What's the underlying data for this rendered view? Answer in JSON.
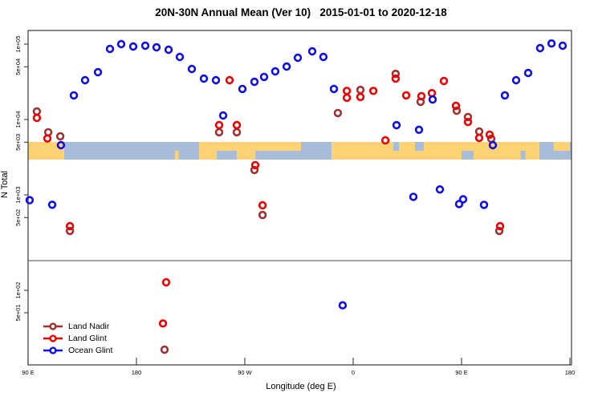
{
  "title": "20N-30N Annual Mean (Ver 10)   2015-01-01 to 2020-12-18",
  "xlabel": "Longitude (deg E)",
  "ylabel": "N Total",
  "colors": {
    "land_nadir": "#A03030",
    "land_glint": "#EE0000",
    "ocean_glint": "#0D0DE8",
    "band_ocean": "#A8BDDB",
    "band_land": "#FFD373",
    "separator": "#888888",
    "axis": "#3a3a3a",
    "tick_text": "#000000"
  },
  "legend": {
    "items": [
      {
        "label": "Land Nadir",
        "color": "land_nadir"
      },
      {
        "label": "Land Glint",
        "color": "land_glint"
      },
      {
        "label": "Ocean Glint",
        "color": "ocean_glint"
      }
    ]
  },
  "axes": {
    "x_ticks": [
      {
        "label": "90 E",
        "lon": 90
      },
      {
        "label": "180",
        "lon": 180
      },
      {
        "label": "90 W",
        "lon": 270
      },
      {
        "label": "0",
        "lon": 360
      },
      {
        "label": "90 E",
        "lon": 450
      },
      {
        "label": "180",
        "lon": 540
      }
    ],
    "y_ticks_upper": [
      {
        "label": "1e+05",
        "value": 100000
      },
      {
        "label": "5e+04",
        "value": 50000
      },
      {
        "label": "1e+04",
        "value": 10000
      },
      {
        "label": "5e+03",
        "value": 5000
      },
      {
        "label": "1e+03",
        "value": 1000
      },
      {
        "label": "5e+02",
        "value": 500
      }
    ],
    "y_ticks_lower": [
      {
        "label": "1e+02",
        "value": 100
      },
      {
        "label": "5e+01",
        "value": 50
      }
    ]
  },
  "map_band": {
    "land_segments": [
      {
        "from": 90,
        "to": 120,
        "part": "full"
      },
      {
        "from": 212,
        "to": 215,
        "part": "bottom"
      },
      {
        "from": 232,
        "to": 246.7,
        "part": "full"
      },
      {
        "from": 246.7,
        "to": 263.3,
        "part": "top"
      },
      {
        "from": 263.3,
        "to": 278.7,
        "part": "full"
      },
      {
        "from": 278.7,
        "to": 316.7,
        "part": "top"
      },
      {
        "from": 342,
        "to": 514.7,
        "part": "full"
      },
      {
        "from": 526.7,
        "to": 540,
        "part": "top"
      }
    ],
    "ocean_patches": [
      {
        "from": 393.3,
        "to": 398,
        "part": "top"
      },
      {
        "from": 411.3,
        "to": 418.7,
        "part": "top"
      },
      {
        "from": 450,
        "to": 460,
        "part": "bottom"
      },
      {
        "from": 499,
        "to": 503,
        "part": "bottom"
      }
    ]
  },
  "chart_data": {
    "type": "scatter",
    "title": "20N-30N Annual Mean (Ver 10)   2015-01-01 to 2020-12-18",
    "xlabel": "Longitude (deg E)",
    "ylabel": "N Total",
    "x_range_deg_east": [
      90,
      540
    ],
    "y_scale": "log10-split",
    "y_range_upper": [
      134,
      150000
    ],
    "y_range_lower": [
      8,
      250
    ],
    "grid": false,
    "legend_position": "bottom-left",
    "series": [
      {
        "name": "Land Nadir",
        "color": "land_nadir",
        "points": [
          [
            97.3,
            12800
          ],
          [
            106.7,
            6780
          ],
          [
            116.7,
            6000
          ],
          [
            124.7,
            333
          ],
          [
            248.7,
            6780
          ],
          [
            263.3,
            6780
          ],
          [
            278,
            2140
          ],
          [
            284.7,
            541
          ],
          [
            347.3,
            12200
          ],
          [
            366,
            24700
          ],
          [
            395.3,
            40300
          ],
          [
            416,
            17200
          ],
          [
            446,
            13100
          ],
          [
            455.3,
            10800
          ],
          [
            464.7,
            6930
          ],
          [
            474.7,
            5560
          ],
          [
            481.3,
            333
          ],
          [
            203.3,
            16
          ]
        ]
      },
      {
        "name": "Land Glint",
        "color": "land_glint",
        "points": [
          [
            97.3,
            10500
          ],
          [
            106,
            5600
          ],
          [
            124.7,
            385
          ],
          [
            248.7,
            8430
          ],
          [
            257.3,
            33200
          ],
          [
            263.3,
            8430
          ],
          [
            278.7,
            2480
          ],
          [
            284.7,
            728
          ],
          [
            354.7,
            24000
          ],
          [
            354.7,
            19400
          ],
          [
            366,
            19900
          ],
          [
            376.7,
            24000
          ],
          [
            386.7,
            5290
          ],
          [
            395.3,
            34900
          ],
          [
            404,
            20900
          ],
          [
            416.7,
            20400
          ],
          [
            425.3,
            22400
          ],
          [
            435.3,
            32400
          ],
          [
            445.3,
            15200
          ],
          [
            455.3,
            9280
          ],
          [
            464.7,
            5700
          ],
          [
            473.3,
            6290
          ],
          [
            482,
            385
          ],
          [
            204.7,
            128
          ],
          [
            202,
            36
          ]
        ]
      },
      {
        "name": "Ocean Glint",
        "color": "ocean_glint",
        "points": [
          [
            91.3,
            850
          ],
          [
            110,
            740
          ],
          [
            117.3,
            4570
          ],
          [
            128,
            20900
          ],
          [
            137.3,
            33200
          ],
          [
            148,
            42400
          ],
          [
            158,
            86300
          ],
          [
            167.3,
            100000
          ],
          [
            177.3,
            92900
          ],
          [
            187.3,
            95200
          ],
          [
            196.7,
            90700
          ],
          [
            206.7,
            84200
          ],
          [
            216,
            67600
          ],
          [
            226,
            46800
          ],
          [
            236,
            34900
          ],
          [
            246,
            33200
          ],
          [
            252,
            11300
          ],
          [
            268,
            25400
          ],
          [
            278,
            31600
          ],
          [
            286,
            36700
          ],
          [
            295.3,
            43500
          ],
          [
            304.7,
            50400
          ],
          [
            314,
            65900
          ],
          [
            326,
            80300
          ],
          [
            335.3,
            67600
          ],
          [
            344,
            25400
          ],
          [
            396,
            8400
          ],
          [
            410,
            944
          ],
          [
            414.7,
            7300
          ],
          [
            426,
            18400
          ],
          [
            432,
            1180
          ],
          [
            448,
            757
          ],
          [
            451.3,
            875
          ],
          [
            468.7,
            738
          ],
          [
            476,
            4570
          ],
          [
            486,
            20900
          ],
          [
            495.3,
            33200
          ],
          [
            505.3,
            41400
          ],
          [
            515.3,
            88400
          ],
          [
            524.7,
            102000
          ],
          [
            534,
            95200
          ],
          [
            351.3,
            63
          ]
        ]
      }
    ]
  }
}
